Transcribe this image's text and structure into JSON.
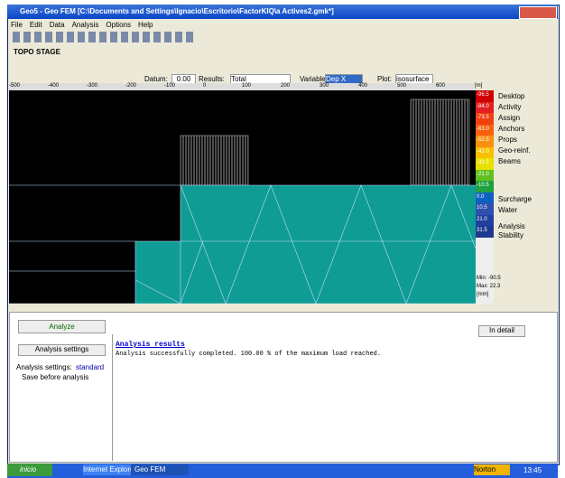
{
  "window": {
    "title": "Geo5 - Geo FEM [C:\\Documents and Settings\\Ignacio\\Escritorio\\FactorKIQ\\a Actives2.gmk*]"
  },
  "menu": [
    "File",
    "Edit",
    "Data",
    "Analysis",
    "Options",
    "Help"
  ],
  "toolbar": {
    "topo": "TOPO",
    "stage": "STAGE",
    "datum_label": "Datum:",
    "datum": "0.00",
    "results_label": "Results:",
    "results": "Total",
    "variable_label": "Variable:",
    "variable": "Dep X",
    "plot_label": "Plot:",
    "plot": "isosurface"
  },
  "ruler": [
    "-500",
    "-400",
    "-300",
    "-200",
    "-100",
    "0",
    "100",
    "200",
    "300",
    "400",
    "500",
    "600",
    "[m]"
  ],
  "legend": {
    "values": [
      "-96.5",
      "-84.0",
      "-73.5",
      "-63.0",
      "-52.5",
      "-42.0",
      "-31.5",
      "-21.0",
      "-10.5",
      "0.0",
      "10.5",
      "21.0",
      "31.5"
    ],
    "min": "Min: -90.5",
    "max": "Max: 22.3",
    "unit": "[mm]"
  },
  "side_panel": {
    "top": [
      "Desktop",
      "Activity",
      "Assign",
      "Anchors",
      "Props",
      "Geo-reinf.",
      "Beams"
    ],
    "bottom": [
      "Surcharge",
      "Water"
    ],
    "extra": [
      "Analysis",
      "Stability"
    ]
  },
  "bottom": {
    "analyze": "Analyze",
    "settings_button": "Analysis settings",
    "settings_label": "Analysis settings:",
    "settings_value": "standard",
    "save": "Save before analysis",
    "detail": "In detail",
    "results_title": "Analysis results",
    "results_text": "Analysis successfully completed. 100.00 % of the maximum load reached."
  },
  "taskbar": {
    "start": "inicio",
    "task1": "Internet Explorer",
    "task2": "Geo FEM",
    "norton": "Norton",
    "clock": "13:45"
  }
}
